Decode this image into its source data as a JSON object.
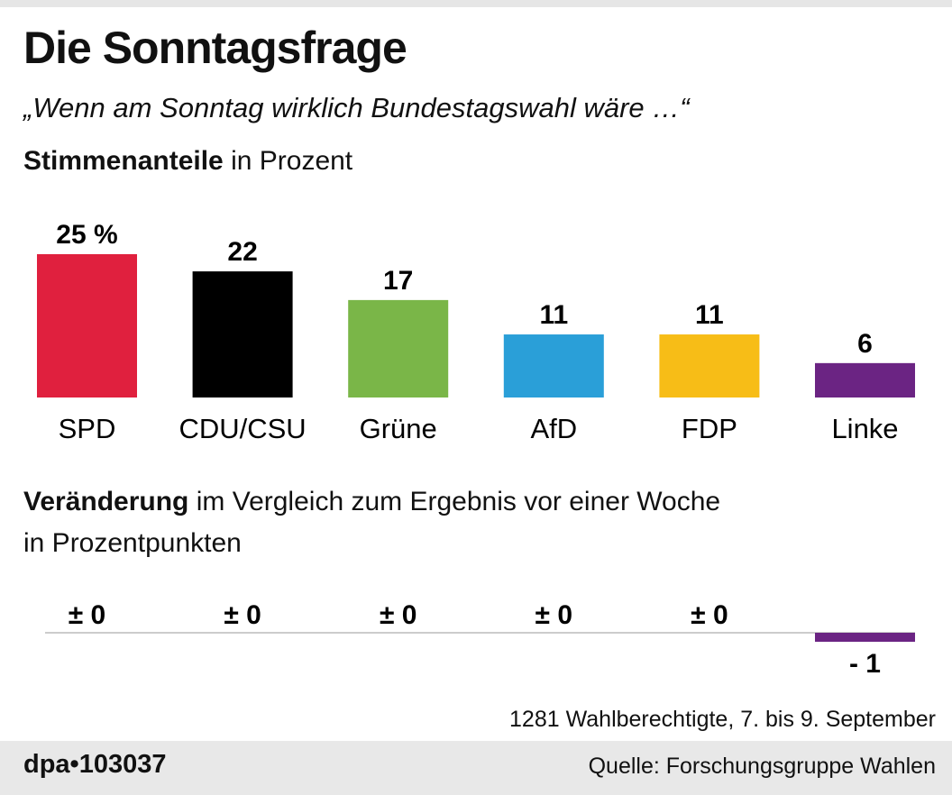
{
  "title": "Die Sonntagsfrage",
  "subtitle": "„Wenn am Sonntag wirklich Bundestagswahl wäre …“",
  "chart_data": [
    {
      "type": "bar",
      "label_bold": "Stimmenanteile",
      "label_rest": " in Prozent",
      "categories": [
        "SPD",
        "CDU/CSU",
        "Grüne",
        "AfD",
        "FDP",
        "Linke"
      ],
      "values": [
        25,
        22,
        17,
        11,
        11,
        6
      ],
      "data_labels": [
        "25 %",
        "22",
        "17",
        "11",
        "11",
        "6"
      ],
      "colors": [
        "#e0203e",
        "#000000",
        "#7ab648",
        "#2a9fd8",
        "#f7bd17",
        "#6b2483"
      ]
    },
    {
      "type": "bar",
      "label_bold": "Veränderung",
      "label_rest": " im Vergleich zum Ergebnis vor einer Woche",
      "label_line2": "in Prozentpunkten",
      "categories": [
        "SPD",
        "CDU/CSU",
        "Grüne",
        "AfD",
        "FDP",
        "Linke"
      ],
      "values": [
        0,
        0,
        0,
        0,
        0,
        -1
      ],
      "data_labels": [
        "± 0",
        "± 0",
        "± 0",
        "± 0",
        "± 0",
        "- 1"
      ],
      "colors": [
        "#e0203e",
        "#000000",
        "#7ab648",
        "#2a9fd8",
        "#f7bd17",
        "#6b2483"
      ]
    }
  ],
  "note": "1281 Wahlberechtigte, 7. bis 9. September",
  "footer": {
    "id": "dpa•103037",
    "source": "Quelle: Forschungsgruppe Wahlen"
  }
}
